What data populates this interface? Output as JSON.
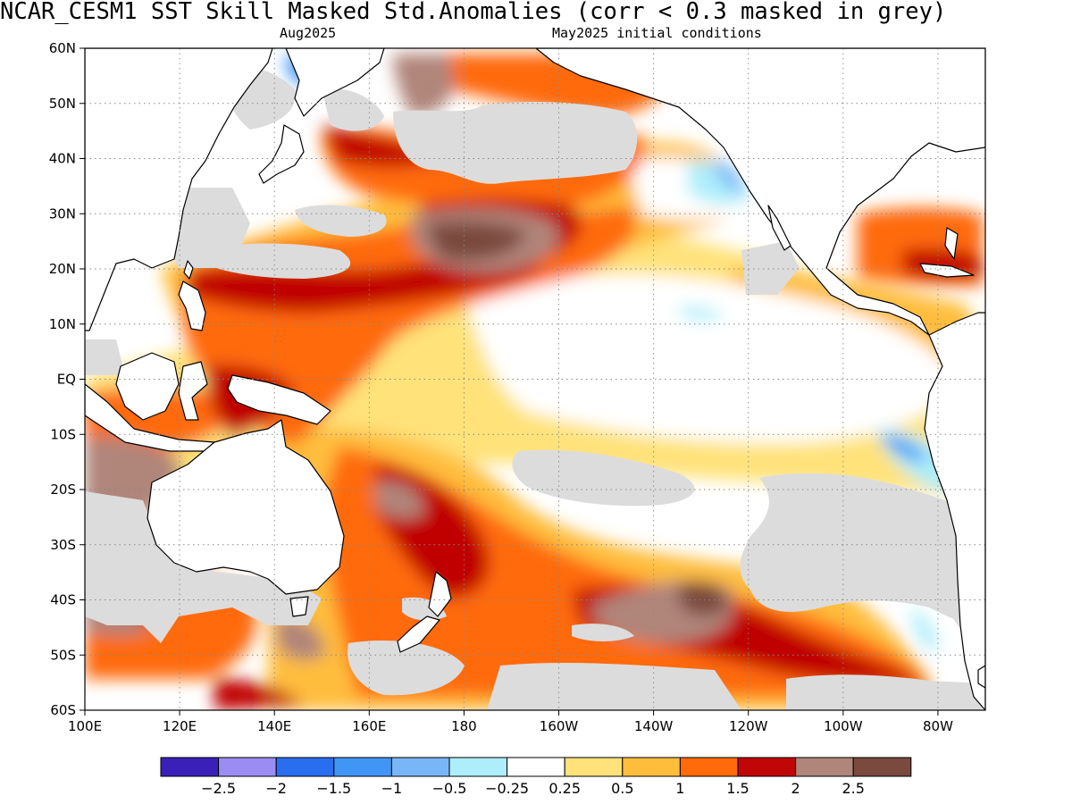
{
  "header": {
    "title": "NCAR_CESM1  SST Skill Masked Std.Anomalies (corr < 0.3 masked in grey)",
    "valid_month": "Aug2025",
    "initial_conditions": "May2025 initial conditions"
  },
  "map": {
    "lon_range": [
      100,
      290
    ],
    "lat_range": [
      -60,
      60
    ],
    "lat_ticks": [
      {
        "value": 60,
        "label": "60N"
      },
      {
        "value": 50,
        "label": "50N"
      },
      {
        "value": 40,
        "label": "40N"
      },
      {
        "value": 30,
        "label": "30N"
      },
      {
        "value": 20,
        "label": "20N"
      },
      {
        "value": 10,
        "label": "10N"
      },
      {
        "value": 0,
        "label": "EQ"
      },
      {
        "value": -10,
        "label": "10S"
      },
      {
        "value": -20,
        "label": "20S"
      },
      {
        "value": -30,
        "label": "30S"
      },
      {
        "value": -40,
        "label": "40S"
      },
      {
        "value": -50,
        "label": "50S"
      },
      {
        "value": -60,
        "label": "60S"
      }
    ],
    "lon_ticks": [
      {
        "value": 100,
        "label": "100E"
      },
      {
        "value": 120,
        "label": "120E"
      },
      {
        "value": 140,
        "label": "140E"
      },
      {
        "value": 160,
        "label": "160E"
      },
      {
        "value": 180,
        "label": "180"
      },
      {
        "value": 200,
        "label": "160W"
      },
      {
        "value": 220,
        "label": "140W"
      },
      {
        "value": 240,
        "label": "120W"
      },
      {
        "value": 260,
        "label": "100W"
      },
      {
        "value": 280,
        "label": "80W"
      }
    ],
    "mask_color": "#dcdcdc",
    "land_fill": "#ffffff",
    "gridlines": "dotted"
  },
  "colorbar": {
    "colors": [
      "#3a20b8",
      "#9b8cf4",
      "#2a6ef0",
      "#4196f5",
      "#78b6f7",
      "#aeeefa",
      "#ffffff",
      "#ffe27a",
      "#ffbd3c",
      "#ff6a0a",
      "#c00606",
      "#b0857a",
      "#7a4a3e"
    ],
    "labels": [
      "-2.5",
      "-2",
      "-1.5",
      "-1",
      "-0.5",
      "-0.25",
      "0.25",
      "0.5",
      "1",
      "1.5",
      "2",
      "2.5"
    ]
  }
}
